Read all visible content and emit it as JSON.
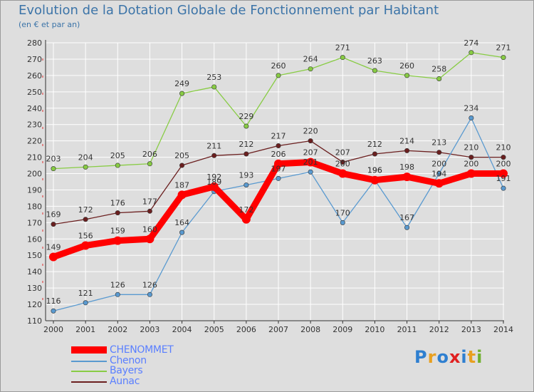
{
  "title": "Evolution de la Dotation Globale de Fonctionnement par Habitant",
  "subtitle": "(en € et par an)",
  "logo_text": "Proxiti",
  "colors": {
    "CHENOMMET": "#ff0000",
    "Chenon": "#5a9ad0",
    "Bayers": "#88cc44",
    "Aunac": "#6b1f1f",
    "axis": "#333333",
    "grid": "#ffffff",
    "label": "#333333"
  },
  "chart_data": {
    "type": "line",
    "title": "Evolution de la Dotation Globale de Fonctionnement par Habitant",
    "subtitle": "(en € et par an)",
    "xlabel": "",
    "ylabel": "",
    "x": [
      2000,
      2001,
      2002,
      2003,
      2004,
      2005,
      2006,
      2007,
      2008,
      2009,
      2010,
      2011,
      2012,
      2013,
      2014
    ],
    "ylim": [
      110,
      280
    ],
    "yticks": [
      110,
      120,
      130,
      140,
      150,
      160,
      170,
      180,
      190,
      200,
      210,
      220,
      230,
      240,
      250,
      260,
      270,
      280
    ],
    "grid": true,
    "legend_position": "bottom-left",
    "series": [
      {
        "name": "CHENOMMET",
        "values": [
          149,
          156,
          159,
          160,
          187,
          192,
          172,
          206,
          207,
          200,
          196,
          198,
          194,
          200,
          200
        ]
      },
      {
        "name": "Chenon",
        "values": [
          116,
          121,
          126,
          126,
          164,
          189,
          193,
          197,
          201,
          170,
          196,
          167,
          200,
          234,
          191
        ]
      },
      {
        "name": "Bayers",
        "values": [
          203,
          204,
          205,
          206,
          249,
          253,
          229,
          260,
          264,
          271,
          263,
          260,
          258,
          274,
          271
        ]
      },
      {
        "name": "Aunac",
        "values": [
          169,
          172,
          176,
          177,
          205,
          211,
          212,
          217,
          220,
          207,
          212,
          214,
          213,
          210,
          210
        ]
      }
    ],
    "data_labels": {
      "CHENOMMET": [
        "149",
        "156",
        "159",
        "160",
        "187",
        "192",
        "172",
        "206",
        "207",
        "200",
        "196",
        "198",
        "194",
        "200",
        "200"
      ],
      "Chenon": [
        "116",
        "121",
        "126",
        "126",
        "164",
        "189",
        "193",
        "197",
        "201",
        "170",
        "196",
        "167",
        "200",
        "234",
        "191"
      ],
      "Bayers": [
        "203",
        "204",
        "205",
        "206",
        "249",
        "253",
        "229",
        "260",
        "264",
        "271",
        "263",
        "260",
        "258",
        "274",
        "271"
      ],
      "Aunac": [
        "169",
        "172",
        "176",
        "177",
        "205",
        "211",
        "212",
        "217",
        "220",
        "207",
        "212",
        "214",
        "213",
        "210",
        "210"
      ]
    }
  }
}
